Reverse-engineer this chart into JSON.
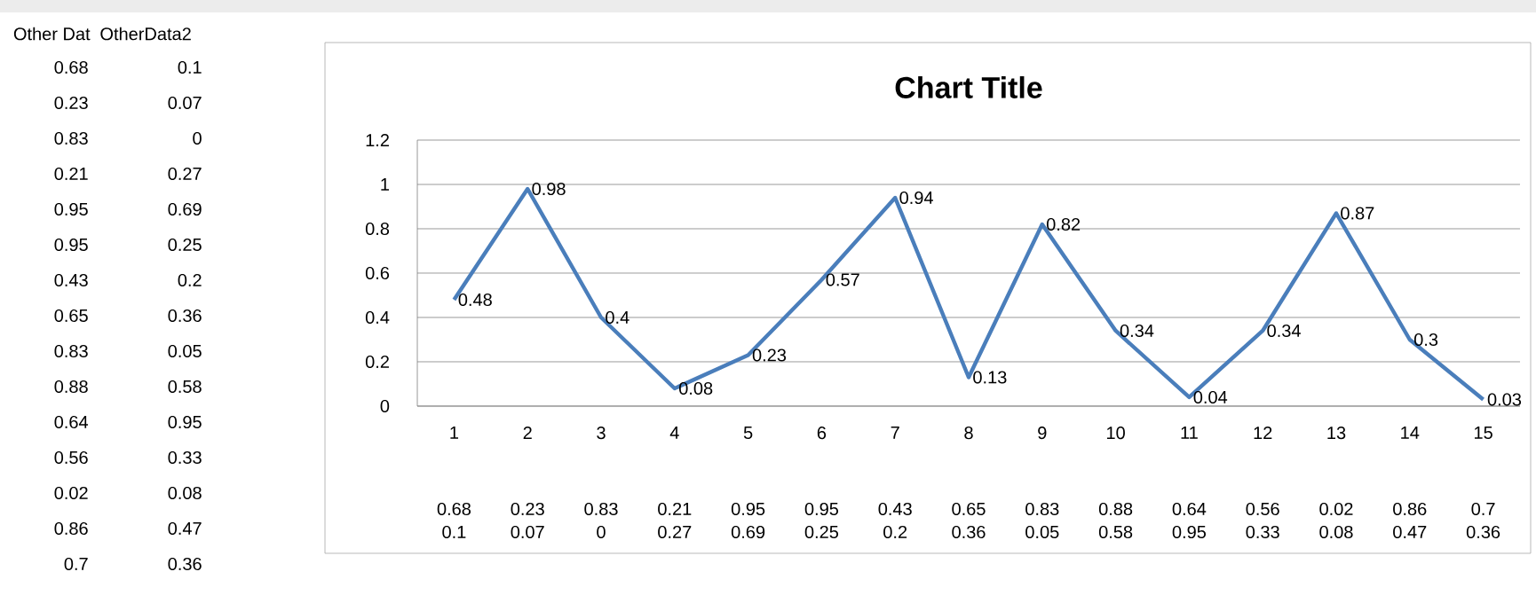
{
  "chart_data": {
    "type": "line",
    "title": "Chart Title",
    "categories": [
      "1",
      "2",
      "3",
      "4",
      "5",
      "6",
      "7",
      "8",
      "9",
      "10",
      "11",
      "12",
      "13",
      "14",
      "15"
    ],
    "series": [
      {
        "color": "#4a7ebb",
        "values": [
          0.48,
          0.98,
          0.4,
          0.08,
          0.23,
          0.57,
          0.94,
          0.13,
          0.82,
          0.34,
          0.04,
          0.34,
          0.87,
          0.3,
          0.03
        ]
      }
    ],
    "ylim": [
      0,
      1.2
    ],
    "yticks": [
      0,
      0.2,
      0.4,
      0.6,
      0.8,
      1,
      1.2
    ],
    "grid": "y",
    "marker": "none",
    "line_style": "solid",
    "data_labels": true,
    "annotations": [
      "Other Dat",
      "OtherData2",
      "0.68",
      "0.23",
      "0.83",
      "0.21",
      "0.95",
      "0.95",
      "0.43",
      "0.65",
      "0.83",
      "0.88",
      "0.64",
      "0.56",
      "0.02",
      "0.86",
      "0.7",
      "0.1",
      "0.07",
      "0",
      "0.27",
      "0.69",
      "0.25",
      "0.2",
      "0.36",
      "0.05",
      "0.58",
      "0.95",
      "0.33",
      "0.08",
      "0.47",
      "0.36",
      "0.68",
      "0.23",
      "0.83",
      "0.21",
      "0.95",
      "0.95",
      "0.43",
      "0.65",
      "0.83",
      "0.88",
      "0.64",
      "0.56",
      "0.02",
      "0.86",
      "0.7",
      "0.1",
      "0.07",
      "0",
      "0.27",
      "0.69",
      "0.25",
      "0.2",
      "0.36",
      "0.05",
      "0.58",
      "0.95",
      "0.33",
      "0.08",
      "0.47",
      "0.36"
    ]
  }
}
